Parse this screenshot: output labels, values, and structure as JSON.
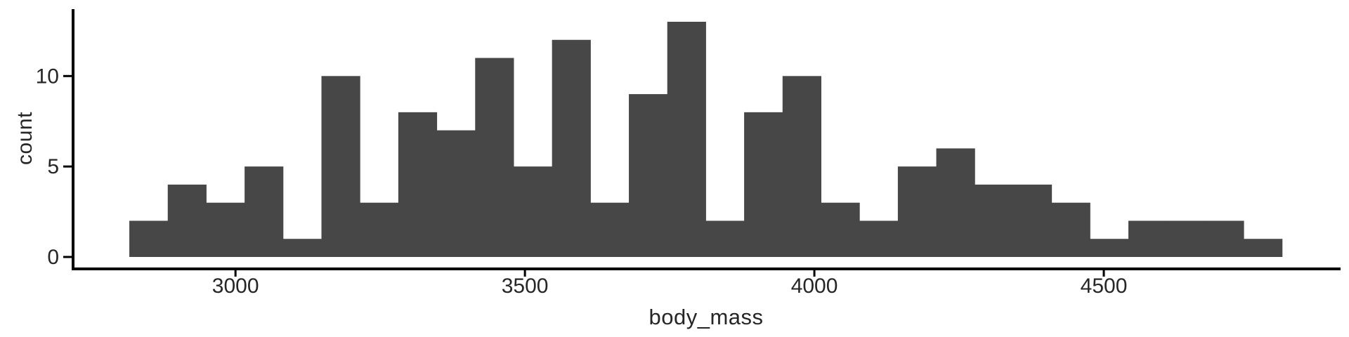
{
  "chart_data": {
    "type": "bar",
    "subtype": "histogram",
    "title": "",
    "xlabel": "body_mass",
    "ylabel": "count",
    "bins": {
      "start": 2816.6,
      "width": 66.38
    },
    "counts": [
      2,
      4,
      3,
      5,
      1,
      10,
      3,
      8,
      7,
      11,
      5,
      12,
      3,
      9,
      13,
      2,
      8,
      10,
      3,
      2,
      5,
      6,
      4,
      4,
      3,
      1,
      2,
      2,
      2,
      1
    ],
    "x_ticks": [
      3000,
      3500,
      4000,
      4500
    ],
    "y_ticks": [
      0,
      5,
      10
    ],
    "xlim": [
      2717,
      4909
    ],
    "ylim": [
      -0.6,
      13.7
    ],
    "grid": false,
    "legend": null,
    "colors": {
      "bar": "#474747",
      "axis": "#000000",
      "text": "#262626",
      "background": "#ffffff"
    }
  }
}
